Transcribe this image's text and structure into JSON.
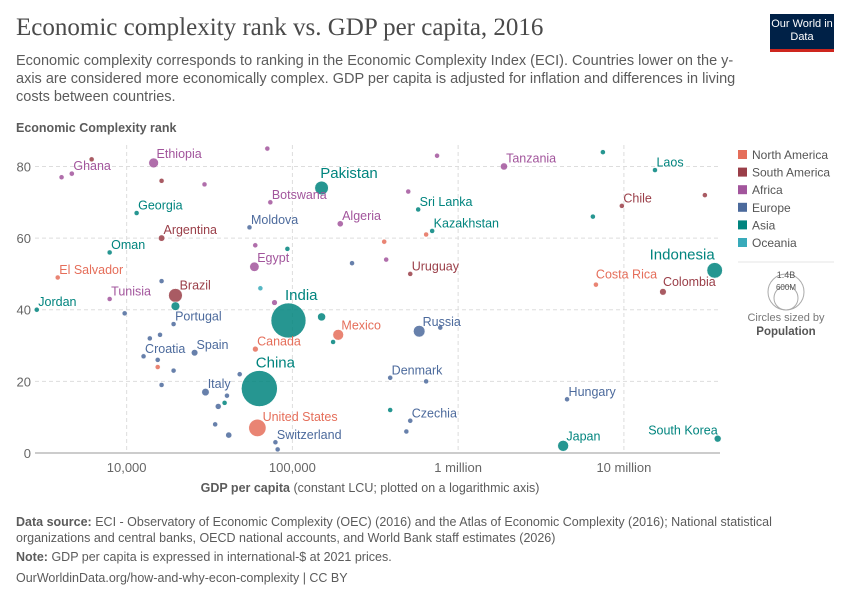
{
  "header": {
    "title": "Economic complexity rank vs. GDP per capita, 2016",
    "subtitle": "Economic complexity corresponds to ranking in the Economic Complexity Index (ECI). Countries lower on the y-axis are considered more economically complex. GDP per capita is adjusted for inflation and differences in living costs between countries.",
    "logo": "Our World in Data"
  },
  "footer": {
    "source_label": "Data source:",
    "source": "ECI - Observatory of Economic Complexity (OEC) (2016) and the Atlas of Economic Complexity (2016); National statistical organizations and central banks, OECD national accounts, and World Bank staff estimates (2026)",
    "note_label": "Note:",
    "note": "GDP per capita is expressed in international-$ at 2021 prices.",
    "url": "OurWorldinData.org/how-and-why-econ-complexity | CC BY"
  },
  "chart_data": {
    "type": "scatter",
    "title": "Economic complexity rank vs. GDP per capita, 2016",
    "ylabel": "Economic Complexity rank",
    "xlabel_bold": "GDP per capita",
    "xlabel_rest": " (constant LCU; plotted on a logarithmic axis)",
    "x_scale": "log",
    "xlim": [
      2800,
      38000000
    ],
    "ylim": [
      0,
      86
    ],
    "x_ticks": [
      {
        "v": 10000,
        "label": "10,000"
      },
      {
        "v": 100000,
        "label": "100,000"
      },
      {
        "v": 1000000,
        "label": "1 million"
      },
      {
        "v": 10000000,
        "label": "10 million"
      }
    ],
    "y_ticks": [
      0,
      20,
      40,
      60,
      80
    ],
    "grid": true,
    "legend_position": "right",
    "colors": {
      "North America": "#e56e5a",
      "South America": "#9a3e48",
      "Africa": "#a2559c",
      "Europe": "#4c6a9c",
      "Asia": "#00847e",
      "Oceania": "#38aaba"
    },
    "legend": [
      "North America",
      "South America",
      "Africa",
      "Europe",
      "Asia",
      "Oceania"
    ],
    "size_legend": {
      "title": "Circles sized by",
      "variable": "Population",
      "large": "1.4B",
      "small": "600M"
    },
    "points": [
      {
        "name": "Ghana",
        "label": true,
        "region": "Africa",
        "x": 4670,
        "y": 78,
        "pop": 28
      },
      {
        "name": "",
        "region": "Africa",
        "x": 4050,
        "y": 77,
        "pop": 5
      },
      {
        "name": "Ethiopia",
        "label": true,
        "region": "Africa",
        "x": 14550,
        "y": 81,
        "pop": 103
      },
      {
        "name": "",
        "region": "Africa",
        "x": 70600,
        "y": 85,
        "pop": 5
      },
      {
        "name": "",
        "region": "Africa",
        "x": 29500,
        "y": 75,
        "pop": 10
      },
      {
        "name": "Botswana",
        "label": true,
        "region": "Africa",
        "x": 73600,
        "y": 70,
        "pop": 2
      },
      {
        "name": "Algeria",
        "label": true,
        "region": "Africa",
        "x": 194500,
        "y": 64,
        "pop": 40
      },
      {
        "name": "Egypt",
        "label": true,
        "region": "Africa",
        "x": 59000,
        "y": 52,
        "pop": 95
      },
      {
        "name": "",
        "region": "Africa",
        "x": 59700,
        "y": 58,
        "pop": 3
      },
      {
        "name": "",
        "region": "Africa",
        "x": 78000,
        "y": 42,
        "pop": 35
      },
      {
        "name": "Tunisia",
        "label": true,
        "region": "Africa",
        "x": 7900,
        "y": 43,
        "pop": 11
      },
      {
        "name": "Tanzania",
        "label": true,
        "region": "Africa",
        "x": 1890000,
        "y": 80,
        "pop": 55
      },
      {
        "name": "",
        "region": "Africa",
        "x": 746000,
        "y": 83,
        "pop": 5
      },
      {
        "name": "",
        "region": "Africa",
        "x": 500000,
        "y": 73,
        "pop": 3
      },
      {
        "name": "",
        "region": "Africa",
        "x": 368000,
        "y": 54,
        "pop": 3
      },
      {
        "name": "",
        "region": "South America",
        "x": 6150,
        "y": 82,
        "pop": 3
      },
      {
        "name": "",
        "region": "South America",
        "x": 16250,
        "y": 76,
        "pop": 11
      },
      {
        "name": "Argentina",
        "label": true,
        "region": "South America",
        "x": 16250,
        "y": 60,
        "pop": 44
      },
      {
        "name": "Brazil",
        "label": true,
        "region": "South America",
        "x": 19700,
        "y": 44,
        "pop": 206
      },
      {
        "name": "Uruguay",
        "label": true,
        "region": "South America",
        "x": 514000,
        "y": 50,
        "pop": 3
      },
      {
        "name": "Chile",
        "label": true,
        "region": "South America",
        "x": 9720000,
        "y": 69,
        "pop": 18
      },
      {
        "name": "",
        "region": "South America",
        "x": 30800000,
        "y": 72,
        "pop": 7
      },
      {
        "name": "Colombia",
        "label": true,
        "region": "South America",
        "x": 17200000,
        "y": 45,
        "pop": 48
      },
      {
        "name": "El Salvador",
        "label": true,
        "region": "North America",
        "x": 3840,
        "y": 49,
        "pop": 6
      },
      {
        "name": "Canada",
        "label": true,
        "region": "North America",
        "x": 59800,
        "y": 29,
        "pop": 36
      },
      {
        "name": "Mexico",
        "label": true,
        "region": "North America",
        "x": 189000,
        "y": 33,
        "pop": 124
      },
      {
        "name": "",
        "region": "North America",
        "x": 15400,
        "y": 24,
        "pop": 3
      },
      {
        "name": "United States",
        "label": true,
        "region": "North America",
        "x": 61500,
        "y": 7,
        "pop": 323
      },
      {
        "name": "",
        "region": "North America",
        "x": 358000,
        "y": 59,
        "pop": 6
      },
      {
        "name": "",
        "region": "North America",
        "x": 641000,
        "y": 61,
        "pop": 9
      },
      {
        "name": "Costa Rica",
        "label": true,
        "region": "North America",
        "x": 6780000,
        "y": 47,
        "pop": 5
      },
      {
        "name": "Moldova",
        "label": true,
        "region": "Europe",
        "x": 55100,
        "y": 63,
        "pop": 3
      },
      {
        "name": "",
        "region": "Europe",
        "x": 229000,
        "y": 53,
        "pop": 3
      },
      {
        "name": "",
        "region": "Europe",
        "x": 16250,
        "y": 48,
        "pop": 3
      },
      {
        "name": "",
        "region": "Europe",
        "x": 9730,
        "y": 39,
        "pop": 3
      },
      {
        "name": "Portugal",
        "label": true,
        "region": "Europe",
        "x": 19200,
        "y": 36,
        "pop": 10
      },
      {
        "name": "",
        "region": "Europe",
        "x": 13800,
        "y": 32,
        "pop": 5
      },
      {
        "name": "",
        "region": "Europe",
        "x": 15900,
        "y": 33,
        "pop": 5
      },
      {
        "name": "Croatia",
        "label": true,
        "region": "Europe",
        "x": 12650,
        "y": 27,
        "pop": 4
      },
      {
        "name": "",
        "region": "Europe",
        "x": 15400,
        "y": 26,
        "pop": 3
      },
      {
        "name": "Spain",
        "label": true,
        "region": "Europe",
        "x": 25700,
        "y": 28,
        "pop": 46
      },
      {
        "name": "",
        "region": "Europe",
        "x": 19200,
        "y": 23,
        "pop": 3
      },
      {
        "name": "",
        "region": "Europe",
        "x": 16250,
        "y": 19,
        "pop": 5
      },
      {
        "name": "Italy",
        "label": true,
        "region": "Europe",
        "x": 29900,
        "y": 17,
        "pop": 60
      },
      {
        "name": "",
        "region": "Europe",
        "x": 40300,
        "y": 16,
        "pop": 5
      },
      {
        "name": "",
        "region": "Europe",
        "x": 35700,
        "y": 13,
        "pop": 38
      },
      {
        "name": "",
        "region": "Europe",
        "x": 34200,
        "y": 8,
        "pop": 17
      },
      {
        "name": "",
        "region": "Europe",
        "x": 41300,
        "y": 5,
        "pop": 40
      },
      {
        "name": "",
        "region": "Europe",
        "x": 48100,
        "y": 22,
        "pop": 11
      },
      {
        "name": "Russia",
        "label": true,
        "region": "Europe",
        "x": 582000,
        "y": 34,
        "pop": 145
      },
      {
        "name": "",
        "region": "Europe",
        "x": 780000,
        "y": 35,
        "pop": 5
      },
      {
        "name": "Denmark",
        "label": true,
        "region": "Europe",
        "x": 389000,
        "y": 21,
        "pop": 6
      },
      {
        "name": "",
        "region": "Europe",
        "x": 641000,
        "y": 20,
        "pop": 5
      },
      {
        "name": "Czechia",
        "label": true,
        "region": "Europe",
        "x": 514000,
        "y": 9,
        "pop": 11
      },
      {
        "name": "",
        "region": "Europe",
        "x": 487000,
        "y": 6,
        "pop": 10
      },
      {
        "name": "Hungary",
        "label": true,
        "region": "Europe",
        "x": 4540000,
        "y": 15,
        "pop": 10
      },
      {
        "name": "Switzerland",
        "label": true,
        "region": "Europe",
        "x": 79000,
        "y": 3,
        "pop": 8
      },
      {
        "name": "",
        "region": "Europe",
        "x": 81500,
        "y": 1,
        "pop": 5
      },
      {
        "name": "Pakistan",
        "label": true,
        "region": "Asia",
        "x": 150000,
        "y": 74,
        "pop": 200
      },
      {
        "name": "Georgia",
        "label": true,
        "region": "Asia",
        "x": 11490,
        "y": 67,
        "pop": 4
      },
      {
        "name": "Oman",
        "label": true,
        "region": "Asia",
        "x": 7900,
        "y": 56,
        "pop": 4
      },
      {
        "name": "Jordan",
        "label": true,
        "region": "Asia",
        "x": 2870,
        "y": 40,
        "pop": 10
      },
      {
        "name": "India",
        "label": true,
        "region": "Asia",
        "x": 94700,
        "y": 37,
        "pop": 1320
      },
      {
        "name": "",
        "region": "Asia",
        "x": 150000,
        "y": 38,
        "pop": 70
      },
      {
        "name": "",
        "region": "Asia",
        "x": 19700,
        "y": 41,
        "pop": 80
      },
      {
        "name": "China",
        "label": true,
        "region": "Asia",
        "x": 63200,
        "y": 18,
        "pop": 1400
      },
      {
        "name": "",
        "region": "Asia",
        "x": 176000,
        "y": 31,
        "pop": 5
      },
      {
        "name": "",
        "region": "Asia",
        "x": 39000,
        "y": 14,
        "pop": 6
      },
      {
        "name": "",
        "region": "Asia",
        "x": 93300,
        "y": 57,
        "pop": 5
      },
      {
        "name": "",
        "region": "Asia",
        "x": 389000,
        "y": 12,
        "pop": 5
      },
      {
        "name": "Sri Lanka",
        "label": true,
        "region": "Asia",
        "x": 574000,
        "y": 68,
        "pop": 21
      },
      {
        "name": "Kazakhstan",
        "label": true,
        "region": "Asia",
        "x": 697000,
        "y": 62,
        "pop": 18
      },
      {
        "name": "",
        "region": "Asia",
        "x": 7470000,
        "y": 84,
        "pop": 5
      },
      {
        "name": "Laos",
        "label": true,
        "region": "Asia",
        "x": 15400000,
        "y": 79,
        "pop": 7
      },
      {
        "name": "",
        "region": "Asia",
        "x": 6500000,
        "y": 66,
        "pop": 6
      },
      {
        "name": "Indonesia",
        "label": true,
        "region": "Asia",
        "x": 35300000,
        "y": 51,
        "pop": 261
      },
      {
        "name": "Japan",
        "label": true,
        "region": "Asia",
        "x": 4300000,
        "y": 2,
        "pop": 127
      },
      {
        "name": "South Korea",
        "label": true,
        "region": "Asia",
        "x": 36800000,
        "y": 4,
        "pop": 51
      },
      {
        "name": "",
        "region": "Oceania",
        "x": 64100,
        "y": 46,
        "pop": 5
      }
    ]
  }
}
